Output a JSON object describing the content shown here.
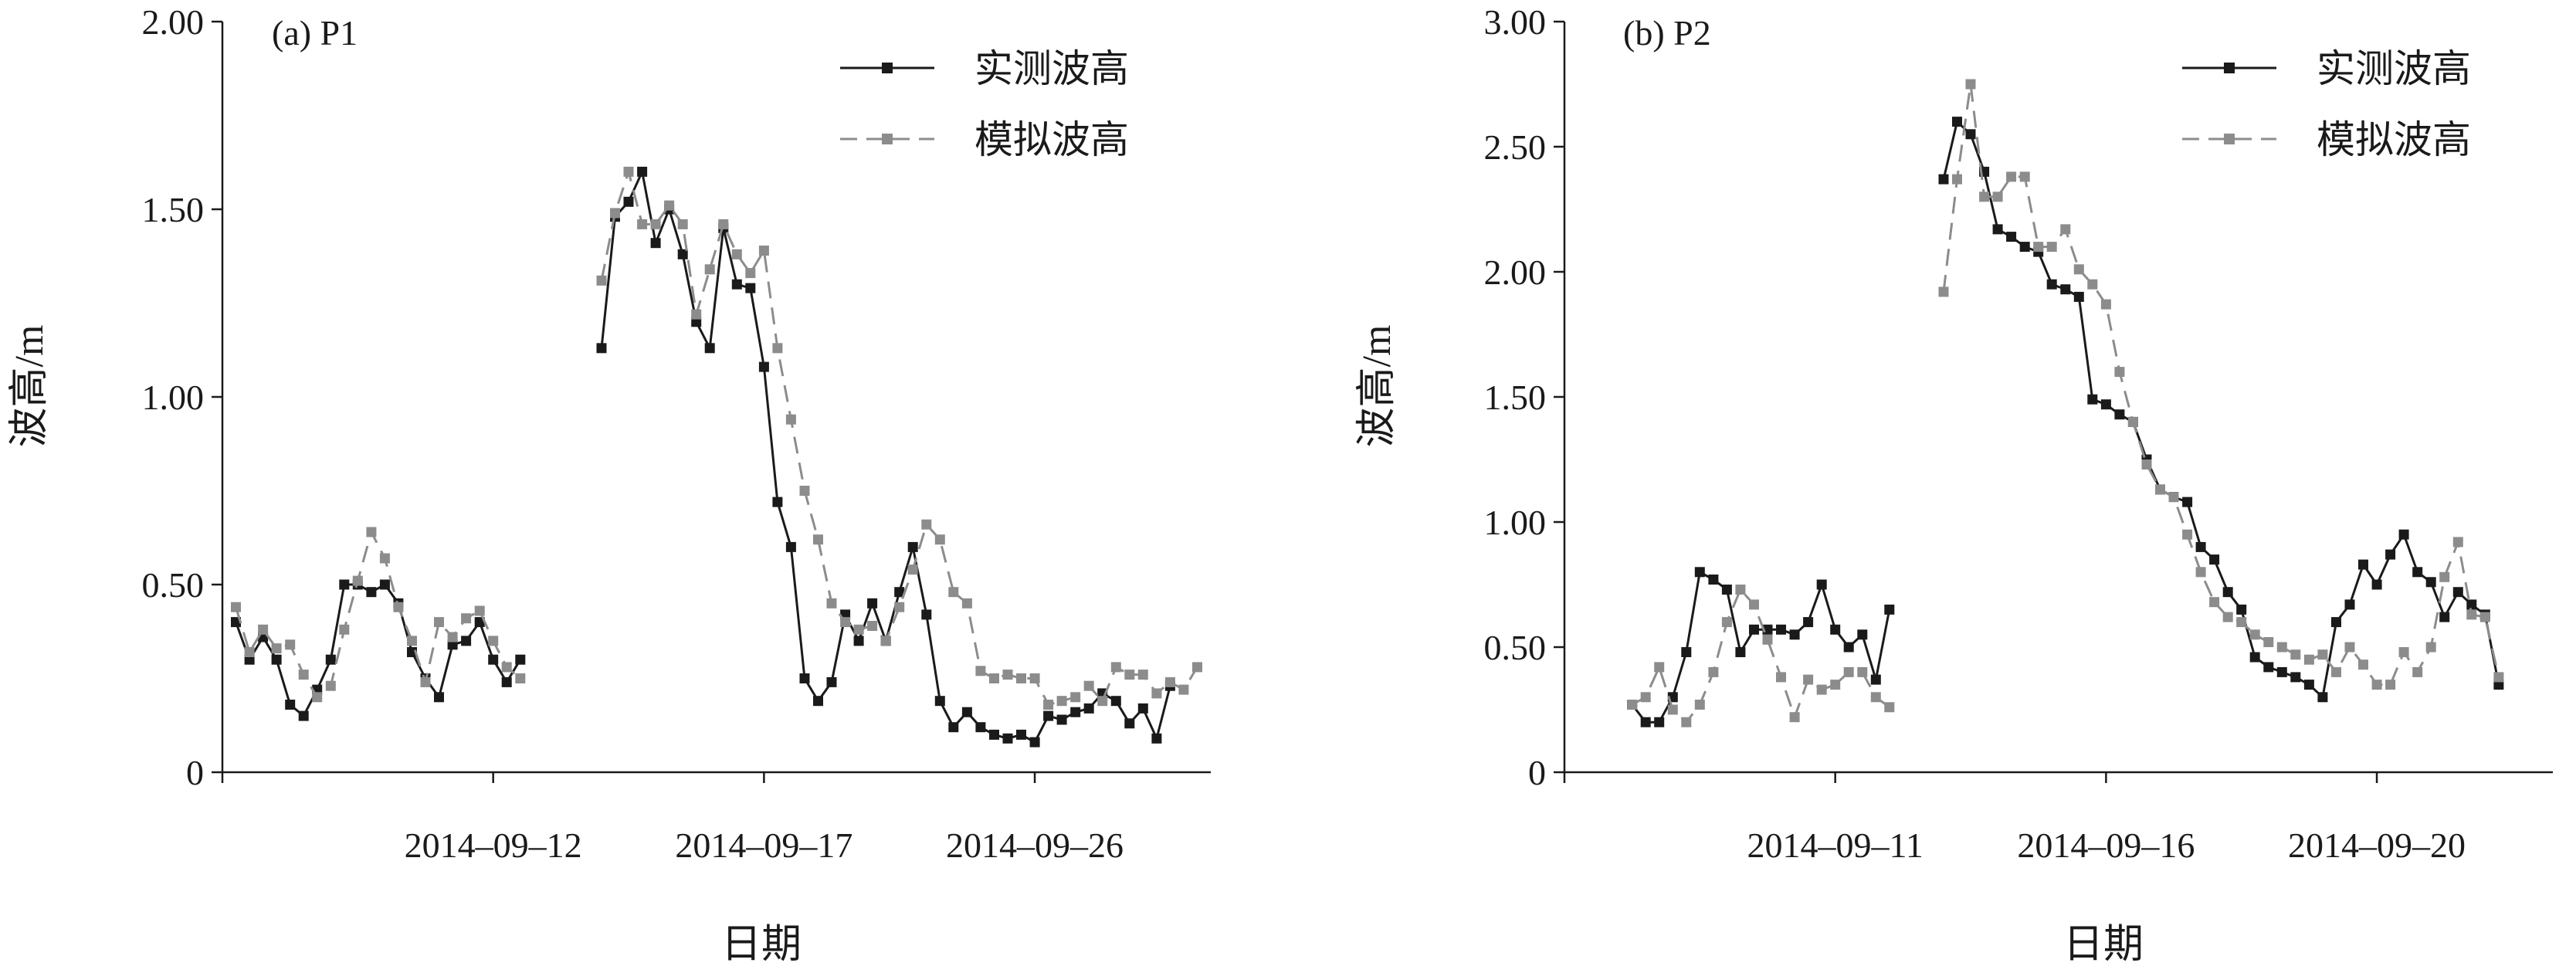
{
  "colors": {
    "observed": "#1a1a1a",
    "simulated": "#8c8c8c",
    "axis": "#1a1a1a"
  },
  "chart_data": [
    {
      "type": "line",
      "panel_label": "(a) P1",
      "xlabel": "日期",
      "ylabel": "波高/m",
      "ylim": [
        0,
        2.0
      ],
      "y_ticks": [
        "0",
        "0.50",
        "1.00",
        "1.50",
        "2.00"
      ],
      "x_ticks": [
        {
          "index": 0,
          "label": ""
        },
        {
          "index": 20,
          "label": "2014–09–12"
        },
        {
          "index": 40,
          "label": "2014–09–17"
        },
        {
          "index": 60,
          "label": "2014–09–26"
        }
      ],
      "x_count": 73,
      "legend_position": "top-right",
      "series": [
        {
          "name": "实测波高",
          "style": "solid",
          "segments": [
            {
              "start": 1,
              "values": [
                0.4,
                0.3,
                0.36,
                0.3,
                0.18,
                0.15,
                0.22,
                0.3,
                0.5,
                0.5,
                0.48,
                0.5,
                0.45,
                0.32,
                0.25,
                0.2,
                0.34,
                0.35,
                0.4,
                0.3,
                0.24,
                0.3
              ]
            },
            {
              "start": 28,
              "values": [
                1.13,
                1.48,
                1.52,
                1.6,
                1.41,
                1.5,
                1.38,
                1.2,
                1.13,
                1.45,
                1.3,
                1.29,
                1.08,
                0.72,
                0.6,
                0.25,
                0.19,
                0.24,
                0.42,
                0.35,
                0.45,
                0.35,
                0.48,
                0.6,
                0.42,
                0.19,
                0.12,
                0.16,
                0.12,
                0.1,
                0.09,
                0.1,
                0.08,
                0.15,
                0.14,
                0.16,
                0.17,
                0.21,
                0.19,
                0.13,
                0.17,
                0.09,
                0.23
              ]
            }
          ]
        },
        {
          "name": "模拟波高",
          "style": "dashed",
          "segments": [
            {
              "start": 1,
              "values": [
                0.44,
                0.32,
                0.38,
                0.33,
                0.34,
                0.26,
                0.2,
                0.23,
                0.38,
                0.51,
                0.64,
                0.57,
                0.44,
                0.35,
                0.24,
                0.4,
                0.36,
                0.41,
                0.43,
                0.35,
                0.28,
                0.25
              ]
            },
            {
              "start": 28,
              "values": [
                1.31,
                1.49,
                1.6,
                1.46,
                1.46,
                1.51,
                1.46,
                1.22,
                1.34,
                1.46,
                1.38,
                1.33,
                1.39,
                1.13,
                0.94,
                0.75,
                0.62,
                0.45,
                0.4,
                0.38,
                0.39,
                0.35,
                0.44,
                0.54,
                0.66,
                0.62,
                0.48,
                0.45,
                0.27,
                0.25,
                0.26,
                0.25,
                0.25,
                0.18,
                0.19,
                0.2,
                0.23,
                0.19,
                0.28,
                0.26,
                0.26,
                0.21,
                0.24,
                0.22,
                0.28
              ]
            }
          ]
        }
      ]
    },
    {
      "type": "line",
      "panel_label": "(b) P2",
      "xlabel": "日期",
      "ylabel": "波高/m",
      "ylim": [
        0,
        3.0
      ],
      "y_ticks": [
        "0",
        "0.50",
        "1.00",
        "1.50",
        "2.00",
        "2.50",
        "3.00"
      ],
      "x_ticks": [
        {
          "index": 0,
          "label": ""
        },
        {
          "index": 20,
          "label": "2014–09–11"
        },
        {
          "index": 40,
          "label": "2014–09–16"
        },
        {
          "index": 60,
          "label": "2014–09–20"
        }
      ],
      "x_count": 73,
      "legend_position": "top-right",
      "series": [
        {
          "name": "实测波高",
          "style": "solid",
          "segments": [
            {
              "start": 5,
              "values": [
                0.27,
                0.2,
                0.2,
                0.3,
                0.48,
                0.8,
                0.77,
                0.73,
                0.48,
                0.57,
                0.57,
                0.57,
                0.55,
                0.6,
                0.75,
                0.57,
                0.5,
                0.55,
                0.37,
                0.65
              ]
            },
            {
              "start": 28,
              "values": [
                2.37,
                2.6,
                2.55,
                2.4,
                2.17,
                2.14,
                2.1,
                2.08,
                1.95,
                1.93,
                1.9,
                1.49,
                1.47,
                1.43,
                1.4,
                1.25,
                1.13,
                1.1,
                1.08,
                0.9,
                0.85,
                0.72,
                0.65,
                0.46,
                0.42,
                0.4,
                0.38,
                0.35,
                0.3,
                0.6,
                0.67,
                0.83,
                0.75,
                0.87,
                0.95,
                0.8,
                0.76,
                0.62,
                0.72,
                0.67,
                0.63,
                0.35
              ]
            }
          ]
        },
        {
          "name": "模拟波高",
          "style": "dashed",
          "segments": [
            {
              "start": 5,
              "values": [
                0.27,
                0.3,
                0.42,
                0.25,
                0.2,
                0.27,
                0.4,
                0.6,
                0.73,
                0.67,
                0.53,
                0.38,
                0.22,
                0.37,
                0.33,
                0.35,
                0.4,
                0.4,
                0.3,
                0.26
              ]
            },
            {
              "start": 28,
              "values": [
                1.92,
                2.37,
                2.75,
                2.3,
                2.3,
                2.38,
                2.38,
                2.1,
                2.1,
                2.17,
                2.01,
                1.95,
                1.87,
                1.6,
                1.4,
                1.23,
                1.13,
                1.1,
                0.95,
                0.8,
                0.68,
                0.62,
                0.6,
                0.55,
                0.52,
                0.5,
                0.47,
                0.45,
                0.47,
                0.4,
                0.5,
                0.43,
                0.35,
                0.35,
                0.48,
                0.4,
                0.5,
                0.78,
                0.92,
                0.63,
                0.62,
                0.38
              ]
            }
          ]
        }
      ]
    }
  ]
}
